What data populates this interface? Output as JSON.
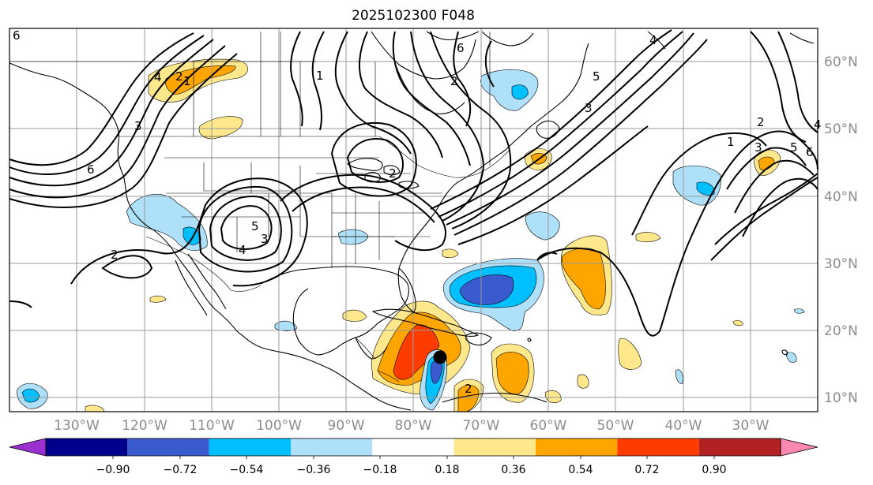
{
  "title": "2025102300 F048",
  "lat_labels": [
    "60°N",
    "50°N",
    "40°N",
    "30°N",
    "20°N",
    "10°N"
  ],
  "lon_labels": [
    "130°W",
    "120°W",
    "110°W",
    "100°W",
    "90°W",
    "80°W",
    "70°W",
    "60°W",
    "50°W",
    "40°W",
    "30°W"
  ],
  "colorbar": {
    "ticks": [
      "−0.90",
      "−0.72",
      "−0.54",
      "−0.36",
      "−0.18",
      "0.18",
      "0.36",
      "0.54",
      "0.72",
      "0.90"
    ],
    "colors": [
      "#9b30d0",
      "#00008b",
      "#3a5bd0",
      "#00bfff",
      "#aee0fa",
      "#ffffff",
      "#ffe88c",
      "#ffa500",
      "#ff3c00",
      "#b22222",
      "#ff88b0"
    ]
  },
  "contour_labels": [
    "6",
    "2",
    "3",
    "4",
    "1",
    "2",
    "5",
    "6",
    "3",
    "2",
    "6",
    "4",
    "1",
    "2",
    "3",
    "5",
    "6",
    "4",
    "1",
    "2",
    "4",
    "3",
    "5",
    "2"
  ],
  "colors": {
    "gridline": "#9a9a9a",
    "contour": "#000000",
    "coast": "#000000",
    "marker": "#000000"
  }
}
